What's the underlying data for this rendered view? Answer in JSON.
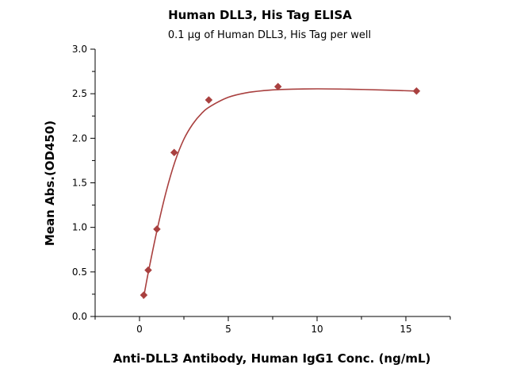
{
  "chart_data": {
    "type": "scatter",
    "title": "Human DLL3, His Tag ELISA",
    "subtitle": "0.1 μg of Human DLL3, His Tag per well",
    "xlabel": "Anti-DLL3 Antibody, Human IgG1 Conc. (ng/mL)",
    "ylabel": "Mean Abs.(OD450)",
    "xlim": [
      -2.5,
      17.5
    ],
    "ylim": [
      0,
      3.0
    ],
    "x_ticks": [
      0,
      5,
      10,
      15
    ],
    "y_ticks": [
      0.0,
      0.5,
      1.0,
      1.5,
      2.0,
      2.5,
      3.0
    ],
    "x_tick_labels": [
      "0",
      "5",
      "10",
      "15"
    ],
    "y_tick_labels": [
      "0.0",
      "0.5",
      "1.0",
      "1.5",
      "2.0",
      "2.5",
      "3.0"
    ],
    "grid": false,
    "legend": "none",
    "series": [
      {
        "points": [
          {
            "x": 0.24,
            "y": 0.24
          },
          {
            "x": 0.49,
            "y": 0.52
          },
          {
            "x": 0.98,
            "y": 0.98
          },
          {
            "x": 1.95,
            "y": 1.84
          },
          {
            "x": 3.9,
            "y": 2.43
          },
          {
            "x": 7.8,
            "y": 2.58
          },
          {
            "x": 15.6,
            "y": 2.53
          }
        ],
        "marker": "diamond",
        "color": "#a9403f"
      }
    ],
    "fit_curve": {
      "color": "#a9403f",
      "points": [
        {
          "x": 0.22,
          "y": 0.2
        },
        {
          "x": 0.5,
          "y": 0.5
        },
        {
          "x": 1.0,
          "y": 0.98
        },
        {
          "x": 1.5,
          "y": 1.4
        },
        {
          "x": 2.0,
          "y": 1.74
        },
        {
          "x": 2.5,
          "y": 1.99
        },
        {
          "x": 3.0,
          "y": 2.16
        },
        {
          "x": 3.5,
          "y": 2.28
        },
        {
          "x": 4.0,
          "y": 2.36
        },
        {
          "x": 5.0,
          "y": 2.46
        },
        {
          "x": 6.0,
          "y": 2.51
        },
        {
          "x": 7.0,
          "y": 2.535
        },
        {
          "x": 8.0,
          "y": 2.548
        },
        {
          "x": 10.0,
          "y": 2.555
        },
        {
          "x": 12.0,
          "y": 2.55
        },
        {
          "x": 14.0,
          "y": 2.54
        },
        {
          "x": 15.6,
          "y": 2.53
        }
      ]
    }
  }
}
